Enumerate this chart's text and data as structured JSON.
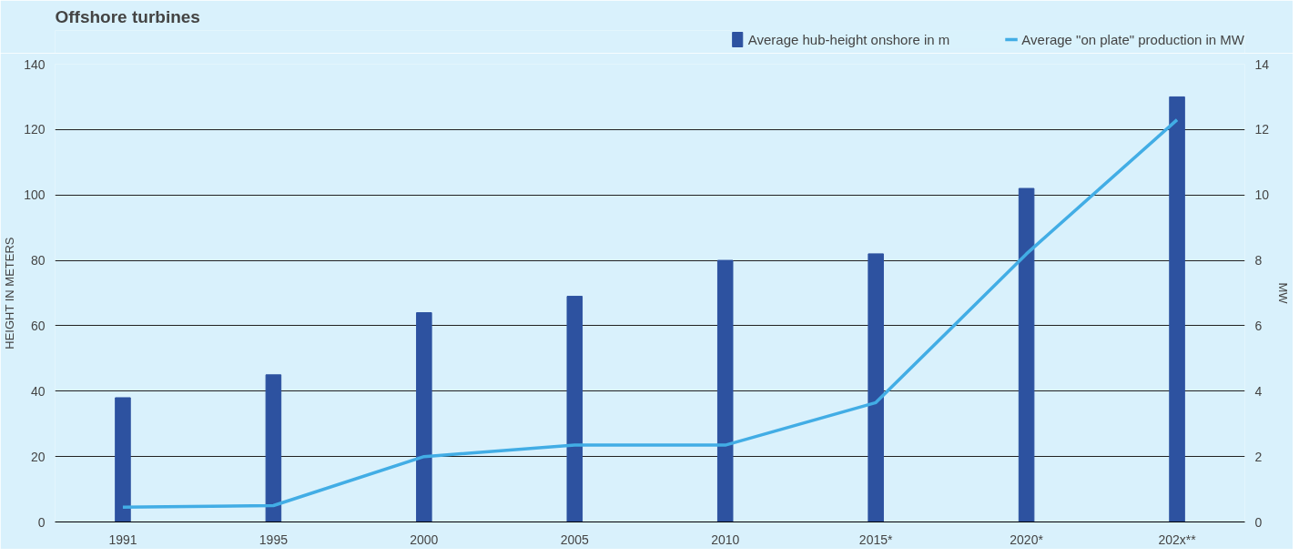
{
  "chart_data": {
    "type": "bar",
    "title": "Offshore turbines",
    "ylabel": "HEIGHT IN METERS",
    "y2label": "MW",
    "categories": [
      "1991",
      "1995",
      "2000",
      "2005",
      "2010",
      "2015*",
      "2020*",
      "202x**"
    ],
    "series": [
      {
        "name": "Average hub-height onshore in m",
        "color": "#2d52a0",
        "values": [
          38,
          45,
          64,
          69,
          80,
          82,
          102,
          130
        ]
      },
      {
        "name": "Average \"on plate\" production in MW",
        "color": "#42ade5",
        "type": "line",
        "axis": "y2",
        "values": [
          0.45,
          0.5,
          2.0,
          2.35,
          2.35,
          3.65,
          8.2,
          12.3
        ]
      }
    ],
    "ylim": [
      0,
      140
    ],
    "yticks": [
      0,
      20,
      40,
      60,
      80,
      100,
      120,
      140
    ],
    "y2lim": [
      0,
      14
    ],
    "y2ticks": [
      0,
      2,
      4,
      6,
      8,
      10,
      12,
      14
    ],
    "grid": "y",
    "legend": "top right",
    "marker": "none",
    "line_style": "solid"
  }
}
